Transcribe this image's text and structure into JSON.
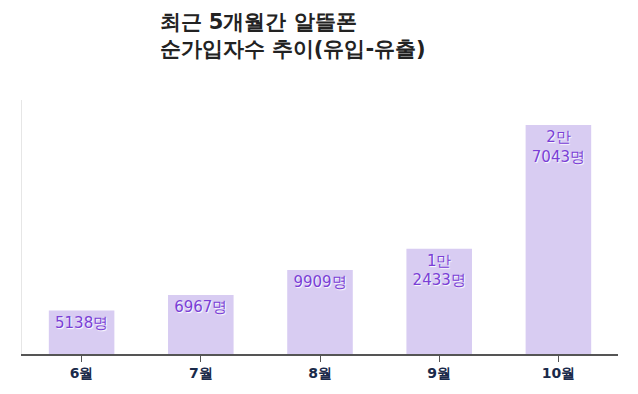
{
  "chart_data": {
    "type": "bar",
    "title": "최근 5개월간 알뜰폰\n순가입자수 추이(유입-유출)",
    "categories": [
      "6월",
      "7월",
      "8월",
      "9월",
      "10월"
    ],
    "values": [
      5138,
      6967,
      9909,
      12433,
      27043
    ],
    "value_labels": [
      "5138명",
      "6967명",
      "9909명",
      "1만\n2433명",
      "2만\n7043명"
    ],
    "color": "#d8ccf2",
    "ylim": [
      0,
      30000
    ],
    "yticks": [],
    "grid": false,
    "data_labels": true,
    "tick_labels": "x"
  }
}
